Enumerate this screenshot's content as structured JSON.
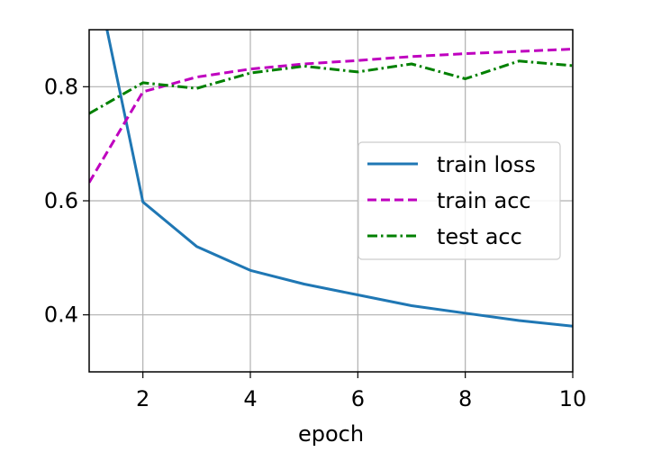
{
  "chart_data": {
    "type": "line",
    "title": "",
    "xlabel": "epoch",
    "ylabel": "",
    "xlim": [
      1,
      10
    ],
    "ylim": [
      0.3,
      0.9
    ],
    "xticks": [
      2,
      4,
      6,
      8,
      10
    ],
    "xtick_labels": [
      "2",
      "4",
      "6",
      "8",
      "10"
    ],
    "yticks": [
      0.4,
      0.6,
      0.8
    ],
    "ytick_labels": [
      "0.4",
      "0.6",
      "0.8"
    ],
    "grid": true,
    "legend_position": "center-right",
    "series": [
      {
        "name": "train loss",
        "color": "#1f77b4",
        "dash": "solid",
        "x": [
          1,
          2,
          3,
          4,
          5,
          6,
          7,
          8,
          9,
          10
        ],
        "y": [
          1.05,
          0.598,
          0.52,
          0.478,
          0.454,
          0.435,
          0.416,
          0.403,
          0.39,
          0.38
        ]
      },
      {
        "name": "train acc",
        "color": "#bf00bf",
        "dash": "dashed",
        "x": [
          1,
          2,
          3,
          4,
          5,
          6,
          7,
          8,
          9,
          10
        ],
        "y": [
          0.632,
          0.791,
          0.817,
          0.831,
          0.84,
          0.846,
          0.853,
          0.858,
          0.862,
          0.866
        ]
      },
      {
        "name": "test acc",
        "color": "#008000",
        "dash": "dashdot",
        "x": [
          1,
          2,
          3,
          4,
          5,
          6,
          7,
          8,
          9,
          10
        ],
        "y": [
          0.753,
          0.807,
          0.797,
          0.824,
          0.836,
          0.826,
          0.84,
          0.814,
          0.845,
          0.837
        ]
      }
    ]
  }
}
